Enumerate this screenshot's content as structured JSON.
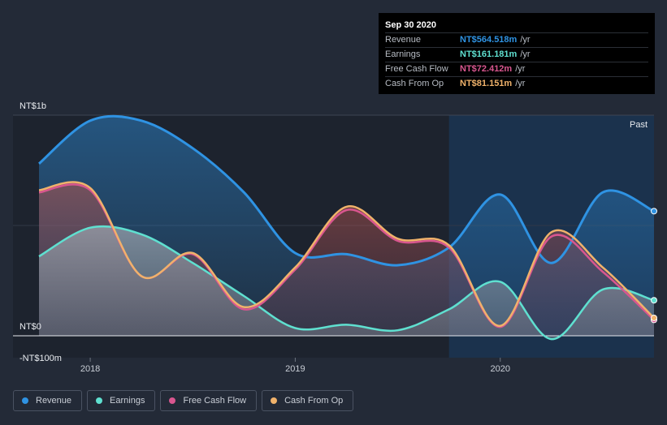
{
  "chart_data": {
    "type": "area",
    "currency": "NT$",
    "x": [
      2017.75,
      2018.0,
      2018.25,
      2018.5,
      2018.75,
      2019.0,
      2019.25,
      2019.5,
      2019.75,
      2020.0,
      2020.25,
      2020.5,
      2020.75
    ],
    "series": [
      {
        "name": "Revenue",
        "color": "#2f93e3",
        "values": [
          780,
          975,
          975,
          850,
          650,
          375,
          370,
          320,
          400,
          640,
          330,
          650,
          565
        ]
      },
      {
        "name": "Earnings",
        "color": "#5fe0d0",
        "values": [
          360,
          490,
          460,
          330,
          180,
          35,
          50,
          25,
          120,
          245,
          -15,
          210,
          161
        ]
      },
      {
        "name": "Free Cash Flow",
        "color": "#d9568f",
        "values": [
          650,
          660,
          270,
          370,
          120,
          300,
          570,
          430,
          400,
          40,
          450,
          290,
          72
        ]
      },
      {
        "name": "Cash From Op",
        "color": "#f0b26b",
        "values": [
          660,
          670,
          270,
          375,
          130,
          310,
          585,
          440,
          410,
          45,
          470,
          310,
          81
        ]
      }
    ],
    "y_labels": {
      "top": "NT$1b",
      "zero": "NT$0",
      "bottom": "-NT$100m"
    },
    "ylim": [
      -100,
      1000
    ],
    "x_ticks": [
      {
        "value": 2018.0,
        "label": "2018"
      },
      {
        "value": 2019.0,
        "label": "2019"
      },
      {
        "value": 2020.0,
        "label": "2020"
      }
    ],
    "xlim": [
      2017.75,
      2020.75
    ],
    "past_start": 2019.75,
    "past_label": "Past"
  },
  "tooltip": {
    "date": "Sep 30 2020",
    "rows": [
      {
        "label": "Revenue",
        "value": "NT$564.518m",
        "unit": "/yr",
        "color": "#2f93e3"
      },
      {
        "label": "Earnings",
        "value": "NT$161.181m",
        "unit": "/yr",
        "color": "#5fe0d0"
      },
      {
        "label": "Free Cash Flow",
        "value": "NT$72.412m",
        "unit": "/yr",
        "color": "#d9568f"
      },
      {
        "label": "Cash From Op",
        "value": "NT$81.151m",
        "unit": "/yr",
        "color": "#f0b26b"
      }
    ]
  },
  "legend": [
    {
      "label": "Revenue",
      "color": "#2f93e3"
    },
    {
      "label": "Earnings",
      "color": "#5fe0d0"
    },
    {
      "label": "Free Cash Flow",
      "color": "#d9568f"
    },
    {
      "label": "Cash From Op",
      "color": "#f0b26b"
    }
  ]
}
